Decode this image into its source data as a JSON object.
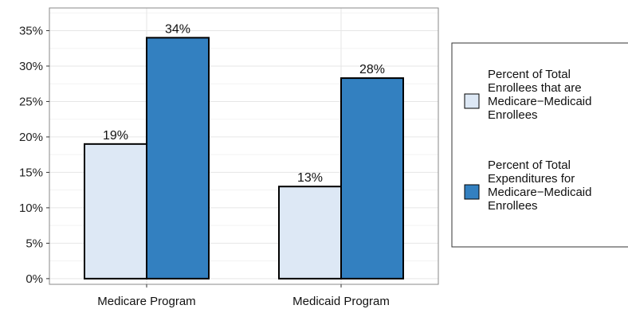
{
  "chart_data": {
    "type": "bar",
    "categories": [
      "Medicare Program",
      "Medicaid Program"
    ],
    "series": [
      {
        "name": "Percent of Total Enrollees that are Medicare–Medicaid Enrollees",
        "legend_lines": [
          "Percent of Total",
          "Enrollees that are",
          "Medicare−Medicaid",
          "Enrollees"
        ],
        "values": [
          19,
          13
        ],
        "labels": [
          "19%",
          "13%"
        ],
        "color": "#dde8f5"
      },
      {
        "name": "Percent of Total Expenditures for Medicare–Medicaid Enrollees",
        "legend_lines": [
          "Percent of Total",
          "Expenditures for",
          "Medicare−Medicaid",
          "Enrollees"
        ],
        "values": [
          34,
          28.3
        ],
        "labels": [
          "34%",
          "28%"
        ],
        "color": "#3380c0"
      }
    ],
    "yticks": [
      0,
      5,
      10,
      15,
      20,
      25,
      30,
      35
    ],
    "ytick_labels": [
      "0%",
      "5%",
      "10%",
      "15%",
      "20%",
      "25%",
      "30%",
      "35%"
    ],
    "ylim": [
      -0.8,
      38.2
    ],
    "grid": true,
    "legend_position": "right"
  }
}
